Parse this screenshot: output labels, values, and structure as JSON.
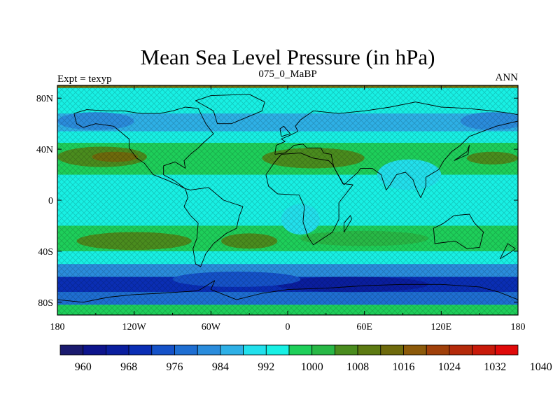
{
  "chart_data": {
    "type": "heatmap",
    "title": "Mean Sea Level Pressure (in hPa)",
    "subtitle_left": "Expt = texyp",
    "subtitle_center": "075_0_MaBP",
    "subtitle_right": "ANN",
    "x_ticks": [
      {
        "value": -180,
        "label": "180"
      },
      {
        "value": -120,
        "label": "120W"
      },
      {
        "value": -60,
        "label": "60W"
      },
      {
        "value": 0,
        "label": "0"
      },
      {
        "value": 60,
        "label": "60E"
      },
      {
        "value": 120,
        "label": "120E"
      },
      {
        "value": 180,
        "label": "180"
      }
    ],
    "y_ticks": [
      {
        "value": 80,
        "label": "80N"
      },
      {
        "value": 40,
        "label": "40N"
      },
      {
        "value": 0,
        "label": "0"
      },
      {
        "value": -40,
        "label": "40S"
      },
      {
        "value": -80,
        "label": "80S"
      }
    ],
    "xlim": [
      -180,
      180
    ],
    "ylim": [
      -90,
      90
    ],
    "levels": [
      960,
      964,
      968,
      972,
      976,
      980,
      984,
      988,
      992,
      996,
      1000,
      1004,
      1008,
      1012,
      1016,
      1020,
      1024,
      1028,
      1032,
      1036,
      1040
    ],
    "colorbar_labels": [
      {
        "value": 960,
        "label": "960"
      },
      {
        "value": 968,
        "label": "968"
      },
      {
        "value": 976,
        "label": "976"
      },
      {
        "value": 984,
        "label": "984"
      },
      {
        "value": 992,
        "label": "992"
      },
      {
        "value": 1000,
        "label": "1000"
      },
      {
        "value": 1008,
        "label": "1008"
      },
      {
        "value": 1016,
        "label": "1016"
      },
      {
        "value": 1024,
        "label": "1024"
      },
      {
        "value": 1032,
        "label": "1032"
      },
      {
        "value": 1040,
        "label": "1040"
      }
    ],
    "colors": [
      "#1a1a6e",
      "#0d148c",
      "#0a1e9e",
      "#0a2eb4",
      "#1552c8",
      "#1e6ed2",
      "#2a8cdc",
      "#2eb0e6",
      "#22e0ec",
      "#18f0e4",
      "#1ecf5a",
      "#28b846",
      "#4a8c1e",
      "#5c7a12",
      "#6e6a0c",
      "#8c5a0a",
      "#a0400a",
      "#b42a0a",
      "#c81a0a",
      "#e00a0a"
    ],
    "pressure_bands": [
      {
        "lat_min": -90,
        "lat_max": -82,
        "value": 1000
      },
      {
        "lat_min": -82,
        "lat_max": -72,
        "value": 980
      },
      {
        "lat_min": -72,
        "lat_max": -60,
        "value": 972
      },
      {
        "lat_min": -60,
        "lat_max": -50,
        "value": 986
      },
      {
        "lat_min": -50,
        "lat_max": -40,
        "value": 996
      },
      {
        "lat_min": -40,
        "lat_max": -20,
        "value": 1003
      },
      {
        "lat_min": -20,
        "lat_max": 20,
        "value": 998
      },
      {
        "lat_min": 20,
        "lat_max": 45,
        "value": 1003
      },
      {
        "lat_min": 45,
        "lat_max": 54,
        "value": 996
      },
      {
        "lat_min": 54,
        "lat_max": 68,
        "value": 990
      },
      {
        "lat_min": 68,
        "lat_max": 88,
        "value": 998
      },
      {
        "lat_min": 88,
        "lat_max": 90,
        "value": 1016
      }
    ],
    "highs": [
      {
        "lon": -145,
        "lat": 34,
        "rlon": 35,
        "rlat": 8,
        "value": 1010
      },
      {
        "lon": -135,
        "lat": 34,
        "rlon": 18,
        "rlat": 4,
        "value": 1018
      },
      {
        "lon": 20,
        "lat": 33,
        "rlon": 40,
        "rlat": 8,
        "value": 1008
      },
      {
        "lon": 160,
        "lat": 33,
        "rlon": 20,
        "rlat": 5,
        "value": 1008
      },
      {
        "lon": -120,
        "lat": -32,
        "rlon": 45,
        "rlat": 7,
        "value": 1008
      },
      {
        "lon": -30,
        "lat": -32,
        "rlon": 22,
        "rlat": 6,
        "value": 1008
      },
      {
        "lon": 60,
        "lat": -30,
        "rlon": 50,
        "rlat": 6,
        "value": 1006
      }
    ],
    "lows": [
      {
        "lon": 50,
        "lat": -66,
        "rlon": 60,
        "rlat": 6,
        "value": 968
      },
      {
        "lon": -40,
        "lat": -62,
        "rlon": 50,
        "rlat": 6,
        "value": 976
      },
      {
        "lon": 95,
        "lat": 20,
        "rlon": 25,
        "rlat": 12,
        "value": 994
      },
      {
        "lon": 10,
        "lat": -15,
        "rlon": 15,
        "rlat": 12,
        "value": 994
      },
      {
        "lon": -150,
        "lat": 62,
        "rlon": 30,
        "rlat": 7,
        "value": 986
      },
      {
        "lon": 160,
        "lat": 62,
        "rlon": 25,
        "rlat": 7,
        "value": 986
      }
    ],
    "coastlines": [
      [
        [
          -167,
          68
        ],
        [
          -157,
          71
        ],
        [
          -140,
          70
        ],
        [
          -128,
          70
        ],
        [
          -115,
          68
        ],
        [
          -100,
          68
        ],
        [
          -90,
          70
        ],
        [
          -80,
          73
        ],
        [
          -70,
          72
        ],
        [
          -64,
          60
        ],
        [
          -58,
          52
        ],
        [
          -66,
          45
        ],
        [
          -70,
          41
        ],
        [
          -76,
          36
        ],
        [
          -81,
          31
        ],
        [
          -80,
          25
        ],
        [
          -88,
          30
        ],
        [
          -97,
          27
        ],
        [
          -97,
          20
        ],
        [
          -88,
          15
        ],
        [
          -80,
          9
        ],
        [
          -86,
          12
        ],
        [
          -95,
          16
        ],
        [
          -105,
          20
        ],
        [
          -112,
          29
        ],
        [
          -118,
          33
        ],
        [
          -124,
          41
        ],
        [
          -124,
          48
        ],
        [
          -136,
          58
        ],
        [
          -150,
          60
        ],
        [
          -160,
          57
        ],
        [
          -165,
          60
        ],
        [
          -167,
          68
        ]
      ],
      [
        [
          -80,
          9
        ],
        [
          -76,
          8
        ],
        [
          -62,
          10
        ],
        [
          -50,
          0
        ],
        [
          -35,
          -5
        ],
        [
          -38,
          -13
        ],
        [
          -40,
          -22
        ],
        [
          -48,
          -26
        ],
        [
          -58,
          -34
        ],
        [
          -64,
          -42
        ],
        [
          -68,
          -52
        ],
        [
          -72,
          -50
        ],
        [
          -74,
          -38
        ],
        [
          -71,
          -30
        ],
        [
          -70,
          -18
        ],
        [
          -76,
          -12
        ],
        [
          -81,
          -5
        ],
        [
          -78,
          2
        ],
        [
          -80,
          9
        ]
      ],
      [
        [
          -17,
          20
        ],
        [
          -10,
          30
        ],
        [
          -5,
          36
        ],
        [
          10,
          37
        ],
        [
          20,
          33
        ],
        [
          32,
          31
        ],
        [
          35,
          28
        ],
        [
          43,
          13
        ],
        [
          51,
          12
        ],
        [
          40,
          -2
        ],
        [
          40,
          -15
        ],
        [
          35,
          -25
        ],
        [
          20,
          -35
        ],
        [
          16,
          -29
        ],
        [
          12,
          -17
        ],
        [
          13,
          -5
        ],
        [
          9,
          4
        ],
        [
          -8,
          5
        ],
        [
          -15,
          11
        ],
        [
          -17,
          20
        ]
      ],
      [
        [
          -10,
          36
        ],
        [
          -9,
          43
        ],
        [
          -2,
          46
        ],
        [
          -5,
          48
        ],
        [
          2,
          51
        ],
        [
          8,
          54
        ],
        [
          6,
          58
        ],
        [
          10,
          63
        ],
        [
          20,
          70
        ],
        [
          40,
          68
        ],
        [
          60,
          70
        ],
        [
          80,
          73
        ],
        [
          100,
          77
        ],
        [
          120,
          73
        ],
        [
          140,
          72
        ],
        [
          160,
          70
        ],
        [
          175,
          68
        ],
        [
          180,
          67
        ],
        [
          180,
          62
        ],
        [
          163,
          58
        ],
        [
          155,
          55
        ],
        [
          142,
          50
        ],
        [
          135,
          43
        ],
        [
          128,
          38
        ],
        [
          122,
          31
        ],
        [
          118,
          24
        ],
        [
          108,
          18
        ],
        [
          108,
          11
        ],
        [
          104,
          2
        ],
        [
          100,
          10
        ],
        [
          98,
          16
        ],
        [
          92,
          22
        ],
        [
          85,
          20
        ],
        [
          80,
          12
        ],
        [
          77,
          8
        ],
        [
          73,
          20
        ],
        [
          66,
          25
        ],
        [
          57,
          25
        ],
        [
          55,
          22
        ],
        [
          44,
          12
        ],
        [
          36,
          26
        ],
        [
          34,
          36
        ],
        [
          28,
          37
        ],
        [
          26,
          41
        ],
        [
          15,
          41
        ],
        [
          12,
          44
        ],
        [
          5,
          43
        ],
        [
          -2,
          37
        ],
        [
          -10,
          36
        ]
      ],
      [
        [
          114,
          -22
        ],
        [
          122,
          -18
        ],
        [
          130,
          -12
        ],
        [
          142,
          -11
        ],
        [
          146,
          -18
        ],
        [
          153,
          -25
        ],
        [
          150,
          -37
        ],
        [
          140,
          -38
        ],
        [
          131,
          -32
        ],
        [
          115,
          -34
        ],
        [
          114,
          -22
        ]
      ],
      [
        [
          -180,
          -78
        ],
        [
          -160,
          -80
        ],
        [
          -140,
          -76
        ],
        [
          -120,
          -74
        ],
        [
          -100,
          -73
        ],
        [
          -70,
          -71
        ],
        [
          -57,
          -63
        ],
        [
          -60,
          -70
        ],
        [
          -40,
          -78
        ],
        [
          -20,
          -73
        ],
        [
          0,
          -70
        ],
        [
          30,
          -69
        ],
        [
          60,
          -67
        ],
        [
          90,
          -66
        ],
        [
          120,
          -66
        ],
        [
          150,
          -68
        ],
        [
          165,
          -72
        ],
        [
          180,
          -78
        ]
      ],
      [
        [
          -55,
          60
        ],
        [
          -44,
          60
        ],
        [
          -20,
          70
        ],
        [
          -18,
          77
        ],
        [
          -30,
          83
        ],
        [
          -60,
          82
        ],
        [
          -72,
          78
        ],
        [
          -58,
          70
        ],
        [
          -55,
          60
        ]
      ],
      [
        [
          -5,
          50
        ],
        [
          2,
          52
        ],
        [
          -3,
          58
        ],
        [
          -6,
          56
        ],
        [
          -5,
          50
        ]
      ],
      [
        [
          130,
          31
        ],
        [
          141,
          36
        ],
        [
          142,
          43
        ],
        [
          140,
          38
        ],
        [
          130,
          31
        ]
      ],
      [
        [
          44,
          -25
        ],
        [
          50,
          -15
        ],
        [
          49,
          -12
        ],
        [
          44,
          -18
        ],
        [
          44,
          -25
        ]
      ],
      [
        [
          166,
          -46
        ],
        [
          174,
          -41
        ],
        [
          178,
          -38
        ],
        [
          172,
          -34
        ],
        [
          166,
          -46
        ]
      ]
    ]
  }
}
